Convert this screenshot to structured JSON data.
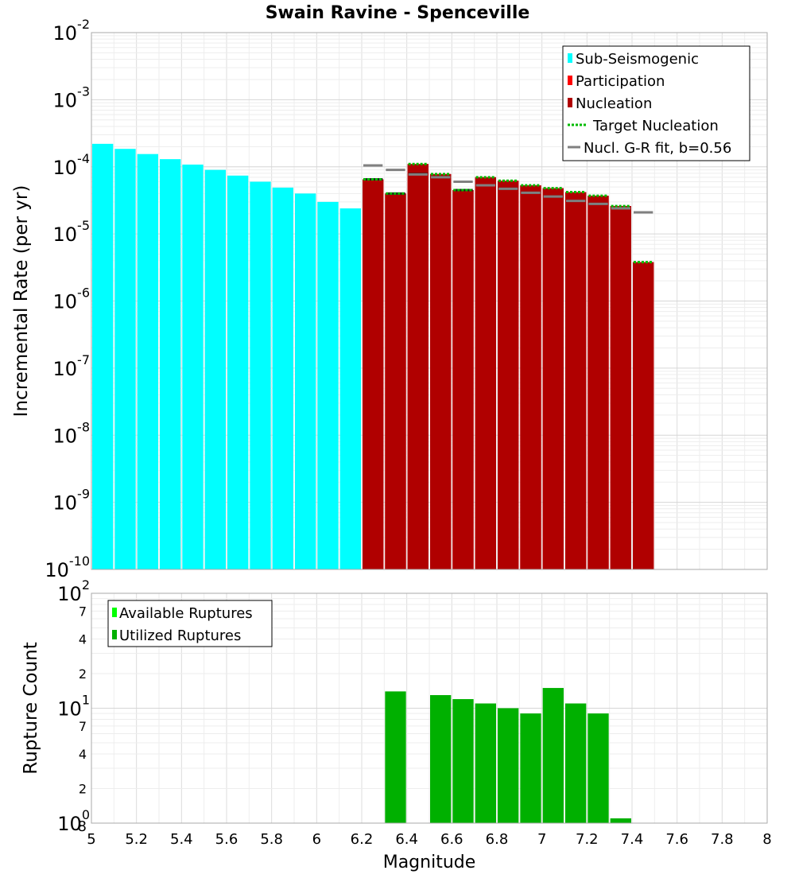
{
  "chart_data": [
    {
      "type": "bar",
      "scale": "log",
      "title": "Swain Ravine - Spenceville",
      "xlabel": "",
      "ylabel": "Incremental Rate (per yr)",
      "xlim": [
        5,
        8
      ],
      "ylim_exponents": [
        -10,
        -2
      ],
      "y_tick_base": "10",
      "y_tick_exponents": [
        -10,
        -9,
        -8,
        -7,
        -6,
        -5,
        -4,
        -3,
        -2
      ],
      "bin_width": 0.1,
      "legend": {
        "placement": "top-right",
        "entries": [
          "Sub-Seismogenic",
          "Participation",
          "Nucleation",
          "Target Nucleation",
          "Nucl. G-R fit, b=0.56"
        ]
      },
      "colors": {
        "sub_seismogenic": "#00ffff",
        "participation": "#ff0000",
        "nucleation": "#b00000",
        "target_nucleation": "#00bb00",
        "gr_fit": "#808080",
        "nucleation_marker": "#222222"
      },
      "series": [
        {
          "name": "Sub-Seismogenic",
          "x": [
            5.05,
            5.15,
            5.25,
            5.35,
            5.45,
            5.55,
            5.65,
            5.75,
            5.85,
            5.95,
            6.05,
            6.15
          ],
          "values": [
            0.00022,
            0.000185,
            0.000155,
            0.00013,
            0.000108,
            9e-05,
            7.4e-05,
            6e-05,
            4.9e-05,
            4e-05,
            3e-05,
            2.4e-05
          ]
        },
        {
          "name": "Participation",
          "x": [
            6.25,
            6.35,
            6.45,
            6.55,
            6.65,
            6.75,
            6.85,
            6.95,
            7.05,
            7.15,
            7.25,
            7.35,
            7.45
          ],
          "values": [
            6.5e-05,
            4e-05,
            0.00011,
            7.8e-05,
            4.5e-05,
            7e-05,
            6.2e-05,
            5.3e-05,
            4.8e-05,
            4.2e-05,
            3.7e-05,
            2.6e-05,
            3.8e-06
          ]
        },
        {
          "name": "Nucleation",
          "x": [
            6.25,
            6.35,
            6.45,
            6.55,
            6.65,
            6.75,
            6.85,
            6.95,
            7.05,
            7.15,
            7.25,
            7.35,
            7.45
          ],
          "values": [
            6.5e-05,
            4e-05,
            0.00011,
            7.8e-05,
            4.5e-05,
            7e-05,
            6.2e-05,
            5.3e-05,
            4.8e-05,
            4.2e-05,
            3.7e-05,
            2.6e-05,
            3.8e-06
          ]
        },
        {
          "name": "Target Nucleation",
          "x": [
            6.25,
            6.35,
            6.45,
            6.55,
            6.65,
            6.75,
            6.85,
            6.95,
            7.05,
            7.15,
            7.25,
            7.35,
            7.45
          ],
          "values": [
            6.5e-05,
            4e-05,
            0.00011,
            7.8e-05,
            4.5e-05,
            7e-05,
            6.2e-05,
            5.3e-05,
            4.8e-05,
            4.2e-05,
            3.7e-05,
            2.6e-05,
            3.8e-06
          ]
        },
        {
          "name": "Nucl. G-R fit, b=0.56",
          "x": [
            6.25,
            6.35,
            6.45,
            6.55,
            6.65,
            6.75,
            6.85,
            6.95,
            7.05,
            7.15,
            7.25,
            7.35,
            7.45
          ],
          "values": [
            0.000105,
            9e-05,
            7.7e-05,
            7e-05,
            6e-05,
            5.3e-05,
            4.7e-05,
            4.1e-05,
            3.6e-05,
            3.1e-05,
            2.8e-05,
            2.4e-05,
            2.1e-05
          ]
        },
        {
          "name": "Nucleation markers",
          "x": [
            6.25,
            6.35,
            6.45,
            6.55,
            6.65,
            6.75,
            6.85,
            6.95,
            7.05,
            7.15,
            7.25,
            7.35
          ],
          "values": [
            6.5e-05,
            4e-05,
            7.8e-05,
            7e-05,
            4.5e-05,
            5.3e-05,
            4.7e-05,
            4.1e-05,
            3.6e-05,
            3.1e-05,
            2.8e-05,
            2.4e-05
          ]
        }
      ]
    },
    {
      "type": "bar",
      "scale": "log",
      "title": "",
      "xlabel": "Magnitude",
      "ylabel": "Rupture Count",
      "xlim": [
        5,
        8
      ],
      "x_ticks": [
        "5",
        "5.2",
        "5.4",
        "5.6",
        "5.8",
        "6",
        "6.2",
        "6.4",
        "6.6",
        "6.8",
        "7",
        "7.2",
        "7.4",
        "7.6",
        "7.8",
        "8"
      ],
      "ylim_exponents": [
        0,
        2
      ],
      "y_tick_base": "10",
      "y_tick_exponents": [
        0,
        1,
        2
      ],
      "y_minor_tick_labels": [
        "2",
        "4",
        "7",
        "2",
        "4",
        "7"
      ],
      "y_bottom_tick_label": "8",
      "bin_width": 0.1,
      "legend": {
        "placement": "top-left",
        "entries": [
          "Available Ruptures",
          "Utilized Ruptures"
        ]
      },
      "colors": {
        "available": "#00ff00",
        "utilized": "#00b000"
      },
      "series": [
        {
          "name": "Utilized Ruptures",
          "x": [
            6.35,
            6.55,
            6.65,
            6.75,
            6.85,
            6.95,
            7.05,
            7.15,
            7.25,
            7.35
          ],
          "values": [
            14,
            13,
            12,
            11,
            10,
            9,
            15,
            11,
            9,
            1.1
          ]
        }
      ]
    }
  ]
}
